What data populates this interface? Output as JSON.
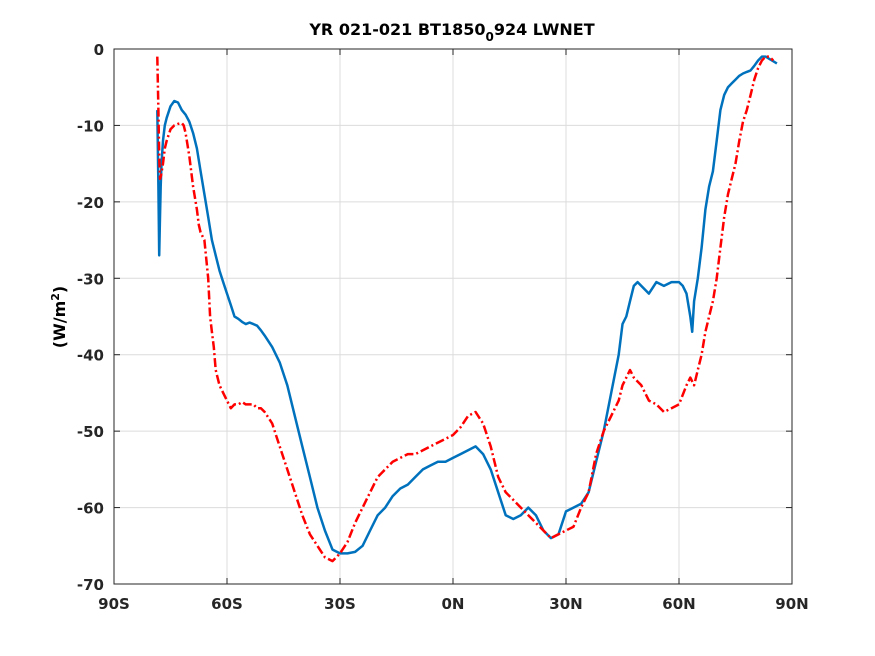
{
  "chart_data": {
    "type": "line",
    "title_main": "YR 021-021 BT1850",
    "title_sub": "0",
    "title_tail": "924 LWNET",
    "ylabel_main": "(W/m",
    "ylabel_sup": "2",
    "ylabel_tail": ")",
    "xlabel": "",
    "xlim": [
      -90,
      90
    ],
    "ylim": [
      -70,
      0
    ],
    "xticks": [
      -90,
      -60,
      -30,
      0,
      30,
      60,
      90
    ],
    "xtick_labels": [
      "90S",
      "60S",
      "30S",
      "0N",
      "30N",
      "60N",
      "90N"
    ],
    "yticks": [
      0,
      -10,
      -20,
      -30,
      -40,
      -50,
      -60,
      -70
    ],
    "ytick_labels": [
      "0",
      "-10",
      "-20",
      "-30",
      "-40",
      "-50",
      "-60",
      "-70"
    ],
    "grid": true,
    "series": [
      {
        "color": "#0072BD",
        "style": "solid",
        "x": [
          -78.5,
          -78.2,
          -78.0,
          -77.8,
          -77.6,
          -77.4,
          -77.0,
          -76.5,
          -76.0,
          -75.0,
          -74.0,
          -73.0,
          -72.0,
          -71.0,
          -70.0,
          -69.0,
          -68.0,
          -67.0,
          -66.0,
          -65.0,
          -64.0,
          -63.0,
          -62.0,
          -61.0,
          -60.0,
          -59.0,
          -58.0,
          -57.0,
          -56.0,
          -55.0,
          -54.0,
          -53.0,
          -52.0,
          -51.0,
          -50.0,
          -48.0,
          -46.0,
          -44.0,
          -42.0,
          -40.0,
          -38.0,
          -36.0,
          -34.0,
          -32.0,
          -30.0,
          -28.0,
          -26.0,
          -24.0,
          -22.0,
          -20.0,
          -18.0,
          -16.0,
          -14.0,
          -12.0,
          -10.0,
          -8.0,
          -6.0,
          -4.0,
          -2.0,
          0.0,
          2.0,
          4.0,
          6.0,
          8.0,
          10.0,
          12.0,
          14.0,
          16.0,
          18.0,
          20.0,
          22.0,
          24.0,
          26.0,
          28.0,
          30.0,
          32.0,
          34.0,
          36.0,
          38.0,
          40.0,
          42.0,
          44.0,
          45.0,
          46.0,
          47.0,
          48.0,
          49.0,
          50.0,
          52.0,
          54.0,
          56.0,
          58.0,
          60.0,
          61.0,
          62.0,
          63.0,
          63.5,
          64.0,
          65.0,
          66.0,
          67.0,
          68.0,
          69.0,
          70.0,
          71.0,
          72.0,
          73.0,
          74.0,
          75.0,
          76.0,
          77.0,
          78.0,
          79.0,
          80.0,
          81.0,
          82.0,
          83.0,
          84.0,
          85.0,
          86.0
        ],
        "y": [
          -8,
          -18,
          -27,
          -22,
          -18,
          -15,
          -12,
          -10,
          -9,
          -7.5,
          -6.8,
          -7,
          -8,
          -8.6,
          -9.5,
          -11,
          -13,
          -16,
          -19,
          -22,
          -25,
          -27,
          -29,
          -30.5,
          -32,
          -33.5,
          -35,
          -35.3,
          -35.7,
          -36,
          -35.8,
          -36,
          -36.2,
          -36.8,
          -37.5,
          -39,
          -41,
          -44,
          -48,
          -52,
          -56,
          -60,
          -63,
          -65.5,
          -66,
          -66,
          -65.8,
          -65,
          -63,
          -61,
          -60,
          -58.5,
          -57.5,
          -57,
          -56,
          -55,
          -54.5,
          -54,
          -54,
          -53.5,
          -53,
          -52.5,
          -52,
          -53,
          -55,
          -58,
          -61,
          -61.5,
          -61,
          -60,
          -61,
          -63,
          -64,
          -63.5,
          -60.5,
          -60,
          -59.5,
          -58,
          -54,
          -50,
          -45,
          -40,
          -36,
          -35,
          -33,
          -31,
          -30.5,
          -31,
          -32,
          -30.5,
          -31,
          -30.5,
          -30.5,
          -31,
          -32,
          -35,
          -37,
          -33,
          -30,
          -26,
          -21,
          -18,
          -16,
          -12,
          -8,
          -6,
          -5,
          -4.5,
          -4,
          -3.5,
          -3.2,
          -3,
          -2.8,
          -2.2,
          -1.5,
          -1,
          -1,
          -1.3,
          -1.6,
          -1.9
        ]
      },
      {
        "color": "#FF0000",
        "style": "dashdot",
        "x": [
          -78.5,
          -78.2,
          -78.0,
          -77.8,
          -77.5,
          -77.0,
          -76.5,
          -76.0,
          -75.0,
          -74.0,
          -73.0,
          -72.0,
          -71.5,
          -71.0,
          -70.0,
          -69.0,
          -68.0,
          -67.5,
          -67.0,
          -66.0,
          -65.0,
          -64.5,
          -64.0,
          -63.5,
          -63.0,
          -62.0,
          -61.0,
          -60.0,
          -59.0,
          -58.0,
          -57.0,
          -56.0,
          -55.0,
          -54.0,
          -53.0,
          -52.0,
          -51.0,
          -50.0,
          -48.0,
          -46.0,
          -44.0,
          -42.0,
          -40.0,
          -38.0,
          -36.0,
          -34.0,
          -32.0,
          -30.0,
          -28.0,
          -26.0,
          -24.0,
          -22.0,
          -20.0,
          -18.0,
          -16.0,
          -14.0,
          -12.0,
          -10.0,
          -8.0,
          -6.0,
          -4.0,
          -2.0,
          0.0,
          2.0,
          4.0,
          6.0,
          8.0,
          10.0,
          12.0,
          14.0,
          16.0,
          18.0,
          20.0,
          22.0,
          24.0,
          26.0,
          28.0,
          30.0,
          32.0,
          34.0,
          36.0,
          38.0,
          40.0,
          42.0,
          44.0,
          45.0,
          46.0,
          47.0,
          48.0,
          50.0,
          52.0,
          54.0,
          56.0,
          58.0,
          60.0,
          62.0,
          63.0,
          64.0,
          65.0,
          66.0,
          67.0,
          68.0,
          69.0,
          70.0,
          71.0,
          72.0,
          73.0,
          74.0,
          75.0,
          76.0,
          77.0,
          78.0,
          79.0,
          80.0,
          81.0,
          82.0,
          83.0,
          84.0,
          85.0
        ],
        "y": [
          -1,
          -8,
          -14,
          -17,
          -16.5,
          -15,
          -13,
          -12,
          -10.5,
          -10,
          -9.8,
          -9.7,
          -10,
          -11,
          -14,
          -18,
          -21,
          -23,
          -24,
          -25,
          -30,
          -35,
          -37,
          -39,
          -42,
          -44,
          -45,
          -46,
          -47,
          -46.5,
          -46.5,
          -46.2,
          -46.5,
          -46.5,
          -46.5,
          -47,
          -47,
          -47.5,
          -49,
          -52,
          -55,
          -58,
          -61,
          -63.5,
          -65,
          -66.5,
          -67,
          -66,
          -64.5,
          -62,
          -60,
          -58,
          -56,
          -55,
          -54,
          -53.5,
          -53,
          -53,
          -52.5,
          -52,
          -51.5,
          -51,
          -50.5,
          -49.5,
          -48,
          -47.5,
          -49,
          -52,
          -56,
          -58,
          -59,
          -60,
          -61,
          -62,
          -63,
          -64,
          -63.5,
          -63,
          -62.5,
          -60,
          -58,
          -53,
          -50,
          -48,
          -46,
          -44,
          -43,
          -42,
          -43,
          -44,
          -46,
          -46.5,
          -47.5,
          -47,
          -46.5,
          -44,
          -43,
          -44,
          -42,
          -40,
          -37,
          -35,
          -33,
          -30,
          -26,
          -22,
          -19,
          -17,
          -15,
          -12,
          -9.5,
          -8,
          -6,
          -4,
          -2.5,
          -1.5,
          -1,
          -1,
          -1.5
        ]
      }
    ]
  }
}
